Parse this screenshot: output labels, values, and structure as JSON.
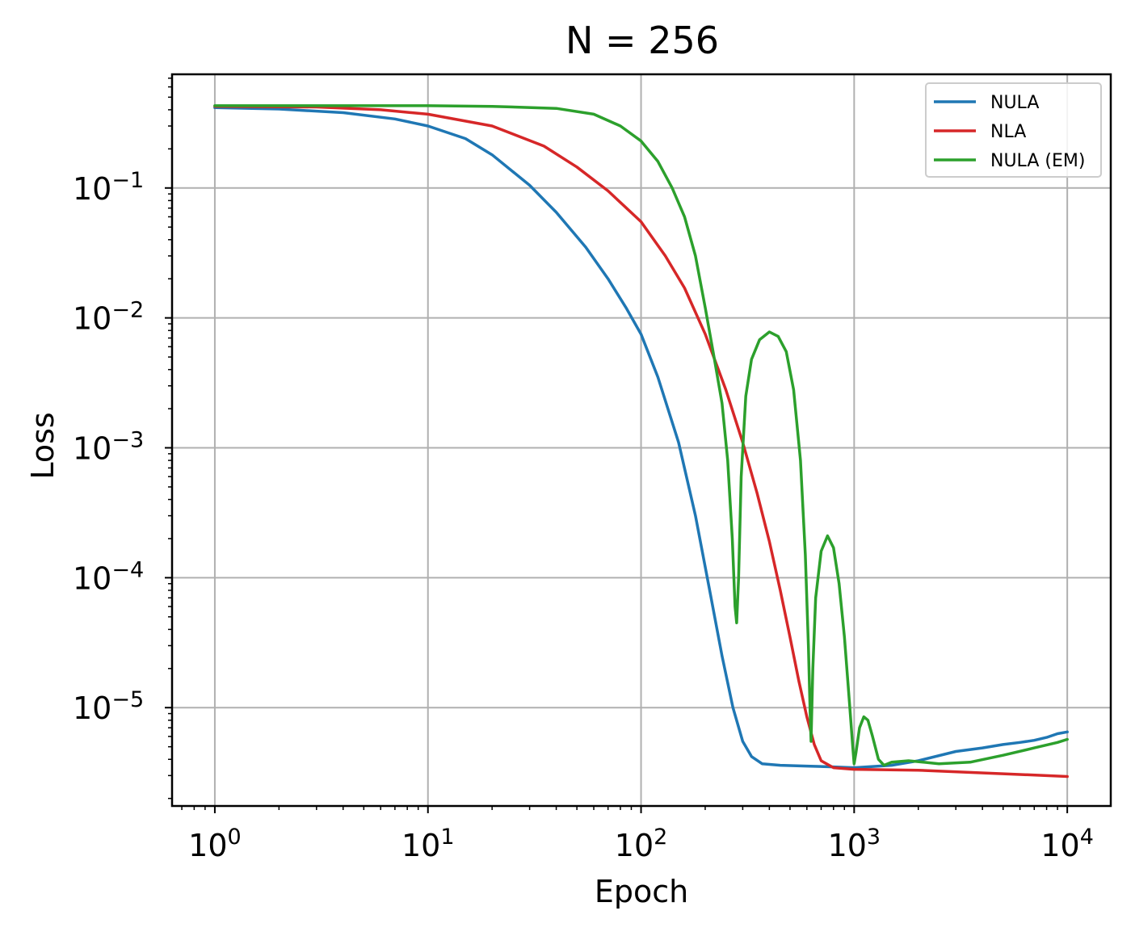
{
  "chart_data": {
    "type": "line",
    "title": "N = 256",
    "xlabel": "Epoch",
    "ylabel": "Loss",
    "xscale": "log",
    "yscale": "log",
    "xlim": [
      0.63,
      16000
    ],
    "ylim": [
      1.75e-06,
      0.75
    ],
    "grid": true,
    "legend_position": "top-right",
    "x_ticks": [
      {
        "base": "10",
        "exp": "0",
        "value": 1
      },
      {
        "base": "10",
        "exp": "1",
        "value": 10
      },
      {
        "base": "10",
        "exp": "2",
        "value": 100
      },
      {
        "base": "10",
        "exp": "3",
        "value": 1000
      },
      {
        "base": "10",
        "exp": "4",
        "value": 10000
      }
    ],
    "y_ticks": [
      {
        "base": "10",
        "exp": "−1",
        "value": 0.1
      },
      {
        "base": "10",
        "exp": "−2",
        "value": 0.01
      },
      {
        "base": "10",
        "exp": "−3",
        "value": 0.001
      },
      {
        "base": "10",
        "exp": "−4",
        "value": 0.0001
      },
      {
        "base": "10",
        "exp": "−5",
        "value": 1e-05
      }
    ],
    "series": [
      {
        "name": "NULA",
        "color": "#1f77b4",
        "points": [
          [
            1,
            0.415
          ],
          [
            2,
            0.405
          ],
          [
            4,
            0.38
          ],
          [
            7,
            0.34
          ],
          [
            10,
            0.3
          ],
          [
            15,
            0.24
          ],
          [
            20,
            0.18
          ],
          [
            30,
            0.105
          ],
          [
            40,
            0.065
          ],
          [
            55,
            0.035
          ],
          [
            70,
            0.02
          ],
          [
            85,
            0.012
          ],
          [
            100,
            0.0075
          ],
          [
            120,
            0.0035
          ],
          [
            150,
            0.0011
          ],
          [
            180,
            0.0003
          ],
          [
            210,
            8e-05
          ],
          [
            240,
            2.5e-05
          ],
          [
            270,
            1e-05
          ],
          [
            300,
            5.5e-06
          ],
          [
            330,
            4.2e-06
          ],
          [
            370,
            3.7e-06
          ],
          [
            450,
            3.6e-06
          ],
          [
            600,
            3.55e-06
          ],
          [
            800,
            3.5e-06
          ],
          [
            1000,
            3.45e-06
          ],
          [
            1500,
            3.6e-06
          ],
          [
            2000,
            3.9e-06
          ],
          [
            3000,
            4.6e-06
          ],
          [
            4000,
            4.9e-06
          ],
          [
            5000,
            5.2e-06
          ],
          [
            6000,
            5.4e-06
          ],
          [
            7000,
            5.6e-06
          ],
          [
            8000,
            5.9e-06
          ],
          [
            9000,
            6.3e-06
          ],
          [
            10000,
            6.5e-06
          ]
        ]
      },
      {
        "name": "NLA",
        "color": "#d62728",
        "points": [
          [
            1,
            0.425
          ],
          [
            3,
            0.42
          ],
          [
            6,
            0.4
          ],
          [
            10,
            0.37
          ],
          [
            20,
            0.3
          ],
          [
            35,
            0.21
          ],
          [
            50,
            0.145
          ],
          [
            70,
            0.095
          ],
          [
            100,
            0.055
          ],
          [
            130,
            0.03
          ],
          [
            160,
            0.017
          ],
          [
            200,
            0.0075
          ],
          [
            250,
            0.0028
          ],
          [
            300,
            0.0011
          ],
          [
            350,
            0.00045
          ],
          [
            400,
            0.00019
          ],
          [
            450,
            8e-05
          ],
          [
            500,
            3.5e-05
          ],
          [
            550,
            1.6e-05
          ],
          [
            600,
            8.5e-06
          ],
          [
            650,
            5.2e-06
          ],
          [
            700,
            3.9e-06
          ],
          [
            800,
            3.45e-06
          ],
          [
            1000,
            3.35e-06
          ],
          [
            2000,
            3.3e-06
          ],
          [
            5000,
            3.1e-06
          ],
          [
            10000,
            2.95e-06
          ]
        ]
      },
      {
        "name": "NULA (EM)",
        "color": "#2ca02c",
        "points": [
          [
            1,
            0.43
          ],
          [
            10,
            0.43
          ],
          [
            20,
            0.425
          ],
          [
            40,
            0.41
          ],
          [
            60,
            0.37
          ],
          [
            80,
            0.3
          ],
          [
            100,
            0.23
          ],
          [
            120,
            0.16
          ],
          [
            140,
            0.1
          ],
          [
            160,
            0.06
          ],
          [
            180,
            0.03
          ],
          [
            200,
            0.012
          ],
          [
            220,
            0.005
          ],
          [
            240,
            0.0022
          ],
          [
            255,
            0.0008
          ],
          [
            268,
            0.0002
          ],
          [
            276,
            6e-05
          ],
          [
            281,
            4.5e-05
          ],
          [
            287,
            0.0001
          ],
          [
            295,
            0.0006
          ],
          [
            310,
            0.0025
          ],
          [
            330,
            0.0048
          ],
          [
            360,
            0.0068
          ],
          [
            400,
            0.0078
          ],
          [
            440,
            0.0072
          ],
          [
            480,
            0.0055
          ],
          [
            520,
            0.0028
          ],
          [
            560,
            0.0008
          ],
          [
            590,
            0.00015
          ],
          [
            610,
            3e-05
          ],
          [
            623,
            8e-06
          ],
          [
            628,
            5.5e-06
          ],
          [
            640,
            2e-05
          ],
          [
            660,
            7e-05
          ],
          [
            700,
            0.00016
          ],
          [
            750,
            0.00021
          ],
          [
            800,
            0.00017
          ],
          [
            850,
            9e-05
          ],
          [
            900,
            3.5e-05
          ],
          [
            950,
            1.1e-05
          ],
          [
            985,
            5e-06
          ],
          [
            1000,
            3.7e-06
          ],
          [
            1020,
            4.5e-06
          ],
          [
            1060,
            7e-06
          ],
          [
            1110,
            8.5e-06
          ],
          [
            1160,
            8e-06
          ],
          [
            1220,
            6e-06
          ],
          [
            1300,
            4e-06
          ],
          [
            1380,
            3.6e-06
          ],
          [
            1500,
            3.8e-06
          ],
          [
            1800,
            3.9e-06
          ],
          [
            2500,
            3.7e-06
          ],
          [
            3500,
            3.8e-06
          ],
          [
            5000,
            4.3e-06
          ],
          [
            7000,
            4.9e-06
          ],
          [
            9000,
            5.4e-06
          ],
          [
            10000,
            5.7e-06
          ]
        ]
      }
    ]
  }
}
